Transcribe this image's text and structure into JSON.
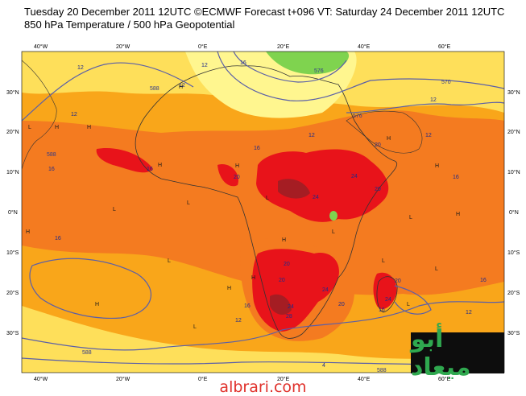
{
  "header": {
    "title": "Tuesday 20 December 2011 12UTC ©ECMWF Forecast t+096 VT: Saturday 24 December 2011 12UTC",
    "subtitle": "850 hPa Temperature / 500 hPa Geopotential"
  },
  "axes": {
    "lat_left": [
      "30°N",
      "20°N",
      "10°N",
      "0°N",
      "10°S",
      "20°S",
      "30°S"
    ],
    "lat_right": [
      "30°N",
      "20°N",
      "10°N",
      "0°N",
      "10°S",
      "20°S",
      "30°S"
    ],
    "lon_top": [
      "40°W",
      "20°W",
      "0°E",
      "20°E",
      "40°E",
      "60°E"
    ],
    "lon_bottom": [
      "40°W",
      "20°W",
      "0°E",
      "20°E",
      "40°E",
      "60°E"
    ]
  },
  "colors": {
    "hot_red": "#e8131a",
    "dark_red": "#a51d23",
    "orange": "#f47b20",
    "light_orange": "#f9a61a",
    "yellow": "#fedf5a",
    "pale_yellow": "#fff68f",
    "green": "#7fd34f",
    "contour": "#5a5fa8",
    "coast": "#333333"
  },
  "contour_labels": {
    "temp": [
      "12",
      "12",
      "16",
      "16",
      "16",
      "16",
      "12",
      "12",
      "16",
      "12",
      "20",
      "20",
      "20",
      "24",
      "24",
      "20",
      "24",
      "20",
      "20",
      "24",
      "28",
      "24",
      "20",
      "16",
      "12",
      "16",
      "12",
      "16",
      "12",
      "12",
      "16",
      "4"
    ],
    "geopotential": [
      "588",
      "588",
      "576",
      "570",
      "576",
      "588",
      "588"
    ]
  },
  "pressure_marks": [
    "H",
    "H",
    "H",
    "H",
    "H",
    "H",
    "H",
    "H",
    "L",
    "L",
    "L",
    "L",
    "L",
    "L",
    "L",
    "H",
    "H",
    "L",
    "L",
    "H",
    "L",
    "H",
    "H",
    "L"
  ],
  "logo": {
    "text": "أبو ميعاد"
  },
  "footer": {
    "url": "albrari.com"
  }
}
